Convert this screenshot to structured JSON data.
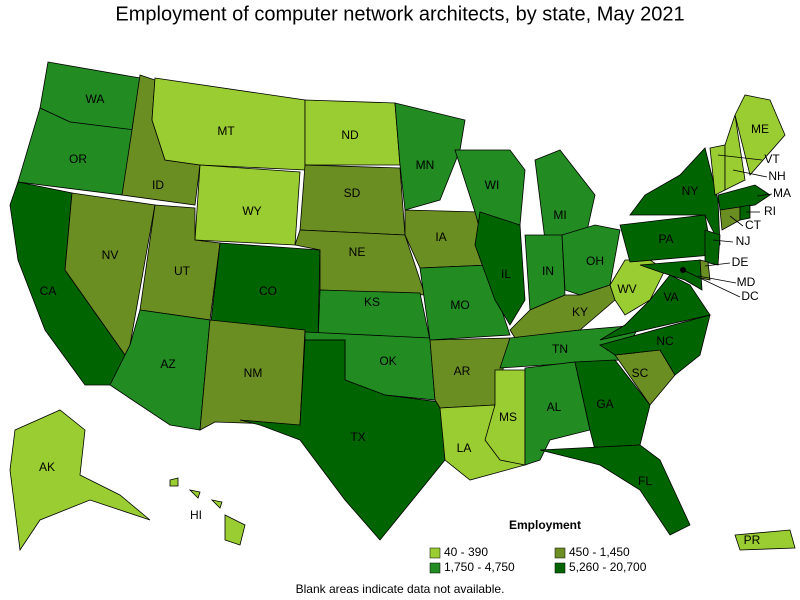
{
  "title": "Employment of computer network architects, by state, May 2021",
  "legend": {
    "title": "Employment",
    "classes": [
      {
        "label": "40 - 390",
        "color": "#9acd32"
      },
      {
        "label": "450 - 1,450",
        "color": "#6b8e23"
      },
      {
        "label": "1,750 - 4,750",
        "color": "#228b22"
      },
      {
        "label": "5,260 - 20,700",
        "color": "#006400"
      }
    ]
  },
  "states": [
    {
      "label": "WA",
      "class": 2
    },
    {
      "label": "OR",
      "class": 2
    },
    {
      "label": "CA",
      "class": 3
    },
    {
      "label": "NV",
      "class": 1
    },
    {
      "label": "ID",
      "class": 1
    },
    {
      "label": "MT",
      "class": 0
    },
    {
      "label": "WY",
      "class": 0
    },
    {
      "label": "UT",
      "class": 1
    },
    {
      "label": "AZ",
      "class": 2
    },
    {
      "label": "CO",
      "class": 3
    },
    {
      "label": "NM",
      "class": 1
    },
    {
      "label": "ND",
      "class": 0
    },
    {
      "label": "SD",
      "class": 1
    },
    {
      "label": "NE",
      "class": 1
    },
    {
      "label": "KS",
      "class": 2
    },
    {
      "label": "OK",
      "class": 2
    },
    {
      "label": "TX",
      "class": 3
    },
    {
      "label": "MN",
      "class": 2
    },
    {
      "label": "IA",
      "class": 1
    },
    {
      "label": "MO",
      "class": 2
    },
    {
      "label": "AR",
      "class": 1
    },
    {
      "label": "LA",
      "class": 0
    },
    {
      "label": "WI",
      "class": 2
    },
    {
      "label": "IL",
      "class": 3
    },
    {
      "label": "MI",
      "class": 2
    },
    {
      "label": "IN",
      "class": 2
    },
    {
      "label": "OH",
      "class": 2
    },
    {
      "label": "KY",
      "class": 1
    },
    {
      "label": "TN",
      "class": 2
    },
    {
      "label": "MS",
      "class": 0
    },
    {
      "label": "AL",
      "class": 2
    },
    {
      "label": "GA",
      "class": 3
    },
    {
      "label": "FL",
      "class": 3
    },
    {
      "label": "SC",
      "class": 1
    },
    {
      "label": "NC",
      "class": 3
    },
    {
      "label": "VA",
      "class": 3
    },
    {
      "label": "WV",
      "class": 0
    },
    {
      "label": "PA",
      "class": 3
    },
    {
      "label": "NY",
      "class": 3
    },
    {
      "label": "VT",
      "class": 0
    },
    {
      "label": "NH",
      "class": 0
    },
    {
      "label": "ME",
      "class": 0
    },
    {
      "label": "MA",
      "class": 3
    },
    {
      "label": "CT",
      "class": 1
    },
    {
      "label": "RI",
      "class": 3
    },
    {
      "label": "NJ",
      "class": 3
    },
    {
      "label": "DE",
      "class": 1
    },
    {
      "label": "MD",
      "class": 3
    },
    {
      "label": "DC",
      "class": 3
    },
    {
      "label": "AK",
      "class": 0
    },
    {
      "label": "HI",
      "class": 0
    },
    {
      "label": "PR",
      "class": 0
    }
  ],
  "footnote": "Blank areas indicate data not available."
}
